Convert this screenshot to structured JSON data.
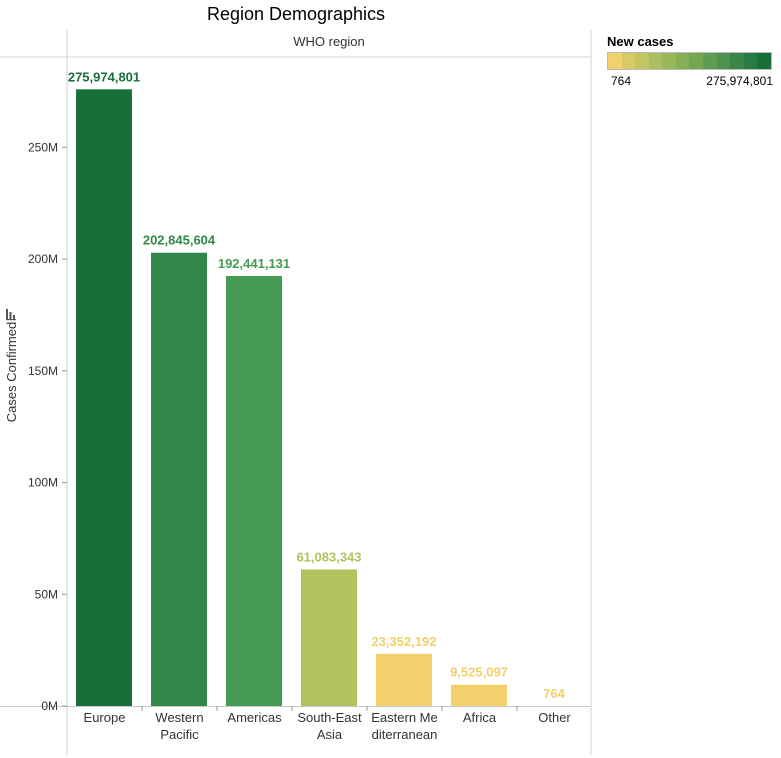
{
  "title": "Region Demographics",
  "chart_data": {
    "type": "bar",
    "header_label": "WHO region",
    "ylabel": "Cases Confirmed",
    "categories": [
      [
        "Europe"
      ],
      [
        "Western",
        "Pacific"
      ],
      [
        "Americas"
      ],
      [
        "South-East",
        "Asia"
      ],
      [
        "Eastern Me",
        "diterranean"
      ],
      [
        "Africa"
      ],
      [
        "Other"
      ]
    ],
    "values": [
      275974801,
      202845604,
      192441131,
      61083343,
      23352192,
      9525097,
      764
    ],
    "value_labels": [
      "275,974,801",
      "202,845,604",
      "192,441,131",
      "61,083,343",
      "23,352,192",
      "9,525,097",
      "764"
    ],
    "colors": [
      "#17703a",
      "#33864a",
      "#459b51",
      "#b2c25e",
      "#f2d06b",
      "#f2d06b",
      "#f2d06b"
    ],
    "ylim": [
      0,
      290000000
    ],
    "yticks": [
      0,
      50000000,
      100000000,
      150000000,
      200000000,
      250000000
    ],
    "ytick_labels": [
      "0M",
      "50M",
      "100M",
      "150M",
      "200M",
      "250M"
    ],
    "grid": false
  },
  "legend": {
    "title": "New cases",
    "min_label": "764",
    "max_label": "275,974,801",
    "ramp_colors": [
      "#f2d06b",
      "#d7cb66",
      "#c1c661",
      "#acbe5d",
      "#98b85a",
      "#86ae56",
      "#74a553",
      "#5f9c50",
      "#4c914d",
      "#3a864a",
      "#287b45",
      "#17703a"
    ]
  }
}
